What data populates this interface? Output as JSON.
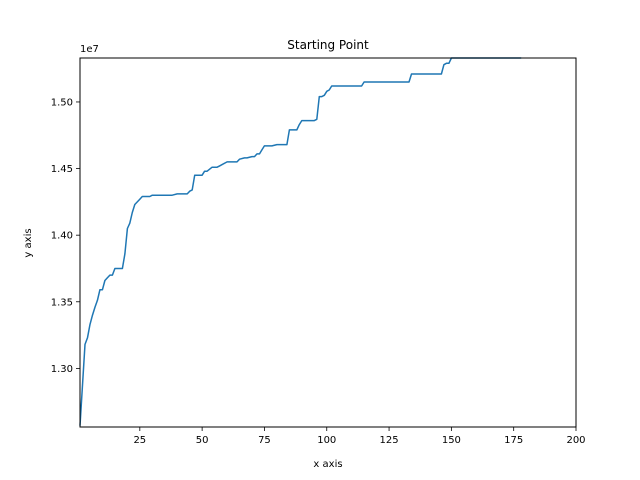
{
  "chart_data": {
    "type": "line",
    "title": "Starting Point",
    "xlabel": "x axis",
    "ylabel": "y axis",
    "y_offset_label": "1e7",
    "xlim": [
      1,
      200
    ],
    "ylim": [
      12560000,
      15330000
    ],
    "x_ticks": [
      25,
      50,
      75,
      100,
      125,
      150,
      175,
      200
    ],
    "x_tick_labels": [
      "25",
      "50",
      "75",
      "100",
      "125",
      "150",
      "175",
      "200"
    ],
    "y_ticks": [
      13000000,
      13500000,
      14000000,
      14500000,
      15000000
    ],
    "y_tick_labels": [
      "1.30",
      "1.35",
      "1.40",
      "1.45",
      "1.50"
    ],
    "grid": false,
    "series": [
      {
        "color": "#1f77b4",
        "x": [
          1,
          3,
          4,
          5,
          6,
          7,
          8,
          9,
          10,
          11,
          12,
          13,
          14,
          15,
          16,
          17,
          18,
          19,
          20,
          21,
          22,
          23,
          24,
          25,
          26,
          27,
          28,
          29,
          30,
          31,
          32,
          35,
          38,
          40,
          42,
          44,
          45,
          46,
          47,
          48,
          50,
          51,
          52,
          54,
          56,
          57,
          58,
          60,
          64,
          65,
          67,
          68,
          70,
          71,
          72,
          73,
          74,
          75,
          76,
          77,
          78,
          80,
          82,
          84,
          85,
          86,
          88,
          89,
          90,
          92,
          95,
          96,
          97,
          98,
          99,
          100,
          101,
          102,
          104,
          106,
          108,
          110,
          112,
          114,
          115,
          116,
          118,
          120,
          125,
          130,
          132,
          133,
          134,
          136,
          138,
          140,
          142,
          145,
          146,
          147,
          148,
          149,
          150,
          152,
          155,
          160,
          165,
          170,
          175,
          178
        ],
        "y": [
          12570000,
          13180000,
          13230000,
          13330000,
          13400000,
          13460000,
          13510000,
          13590000,
          13590000,
          13660000,
          13680000,
          13700000,
          13700000,
          13750000,
          13750000,
          13750000,
          13750000,
          13860000,
          14050000,
          14090000,
          14170000,
          14230000,
          14250000,
          14270000,
          14290000,
          14290000,
          14290000,
          14290000,
          14300000,
          14300000,
          14300000,
          14300000,
          14300000,
          14310000,
          14310000,
          14310000,
          14330000,
          14340000,
          14450000,
          14450000,
          14450000,
          14480000,
          14480000,
          14510000,
          14510000,
          14520000,
          14530000,
          14550000,
          14550000,
          14570000,
          14580000,
          14580000,
          14590000,
          14590000,
          14610000,
          14610000,
          14640000,
          14670000,
          14670000,
          14670000,
          14670000,
          14680000,
          14680000,
          14680000,
          14790000,
          14790000,
          14790000,
          14830000,
          14860000,
          14860000,
          14860000,
          14870000,
          15040000,
          15040000,
          15050000,
          15080000,
          15090000,
          15120000,
          15120000,
          15120000,
          15120000,
          15120000,
          15120000,
          15120000,
          15150000,
          15150000,
          15150000,
          15150000,
          15150000,
          15150000,
          15150000,
          15150000,
          15210000,
          15210000,
          15210000,
          15210000,
          15210000,
          15210000,
          15210000,
          15280000,
          15290000,
          15290000,
          15330000,
          15340000,
          15340000,
          15340000,
          15340000,
          15340000,
          15340000,
          15340000
        ]
      }
    ]
  }
}
